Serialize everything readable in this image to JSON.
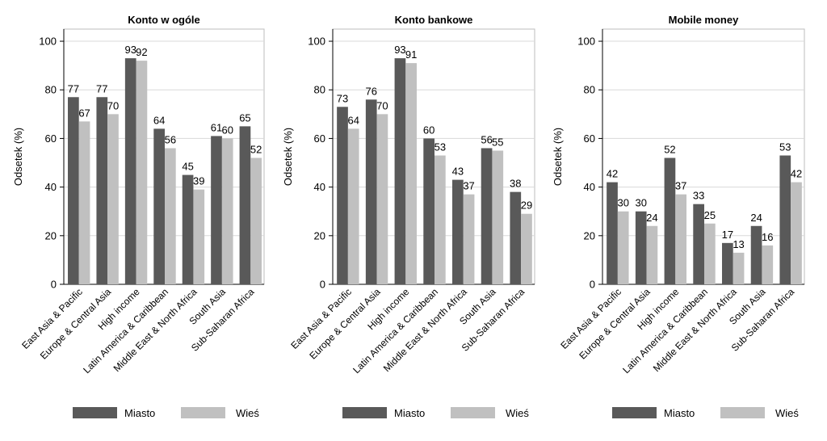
{
  "colors": {
    "miasto": "#595959",
    "wies": "#c0c0c0",
    "grid": "#d9d9d9",
    "axis": "#000000"
  },
  "chart_data": [
    {
      "type": "bar",
      "title": "Konto w ogóle",
      "ylabel": "Odsetek (%)",
      "ylim": [
        0,
        100
      ],
      "yticks": [
        "0",
        "20",
        "40",
        "60",
        "80",
        "100"
      ],
      "categories": [
        "East Asia & Pacific",
        "Europe & Central Asia",
        "High income",
        "Latin America & Caribbean",
        "Middle East & North Africa",
        "South Asia",
        "Sub-Saharan Africa"
      ],
      "series": [
        {
          "name": "Miasto",
          "values": [
            77,
            77,
            93,
            64,
            45,
            61,
            65
          ]
        },
        {
          "name": "Wieś",
          "values": [
            67,
            70,
            92,
            56,
            39,
            60,
            52
          ]
        }
      ]
    },
    {
      "type": "bar",
      "title": "Konto bankowe",
      "ylabel": "Odsetek (%)",
      "ylim": [
        0,
        100
      ],
      "yticks": [
        "0",
        "20",
        "40",
        "60",
        "80",
        "100"
      ],
      "categories": [
        "East Asia & Pacific",
        "Europe & Central Asia",
        "High income",
        "Latin America & Caribbean",
        "Middle East & North Africa",
        "South Asia",
        "Sub-Saharan Africa"
      ],
      "series": [
        {
          "name": "Miasto",
          "values": [
            73,
            76,
            93,
            60,
            43,
            56,
            38
          ]
        },
        {
          "name": "Wieś",
          "values": [
            64,
            70,
            91,
            53,
            37,
            55,
            29
          ]
        }
      ]
    },
    {
      "type": "bar",
      "title": "Mobile money",
      "ylabel": "Odsetek (%)",
      "ylim": [
        0,
        100
      ],
      "yticks": [
        "0",
        "20",
        "40",
        "60",
        "80",
        "100"
      ],
      "categories": [
        "East Asia & Pacific",
        "Europe & Central Asia",
        "High income",
        "Latin America & Caribbean",
        "Middle East & North Africa",
        "South Asia",
        "Sub-Saharan Africa"
      ],
      "series": [
        {
          "name": "Miasto",
          "values": [
            42,
            30,
            52,
            33,
            17,
            24,
            53
          ]
        },
        {
          "name": "Wieś",
          "values": [
            30,
            24,
            37,
            25,
            13,
            16,
            42
          ]
        }
      ]
    }
  ]
}
